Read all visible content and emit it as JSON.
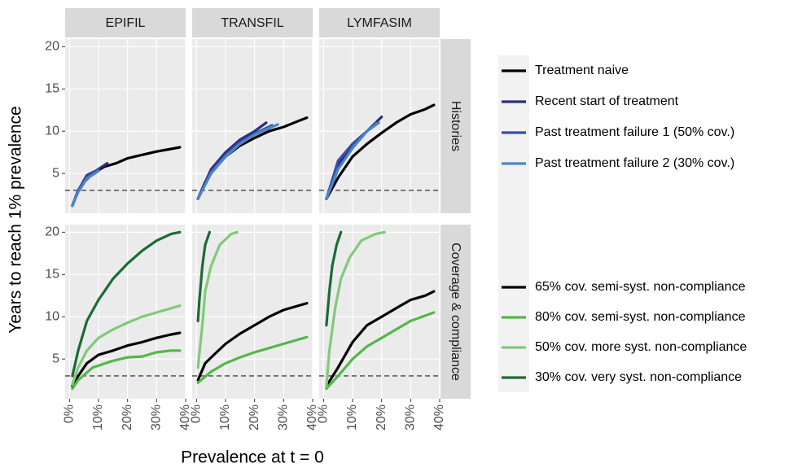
{
  "chart_data": {
    "type": "line",
    "x_label": "Prevalence at t = 0",
    "y_label": "Years to reach 1% prevalence",
    "columns": [
      "EPIFIL",
      "TRANSFIL",
      "LYMFASIM"
    ],
    "xlim": [
      -1.5,
      40
    ],
    "xticks": [
      {
        "value": 0,
        "label": "0%"
      },
      {
        "value": 10,
        "label": "10%"
      },
      {
        "value": 20,
        "label": "20%"
      },
      {
        "value": 30,
        "label": "30%"
      },
      {
        "value": 40,
        "label": "40%"
      }
    ],
    "ylim": [
      0.3,
      20.9
    ],
    "yticks": [
      5,
      10,
      15,
      20
    ],
    "reference_line": 3,
    "grid": true,
    "rows": [
      {
        "label": "Histories",
        "series": [
          {
            "name": "Treatment naive",
            "color": "#000000",
            "x": [
              [
                1,
                3,
                5,
                8,
                12,
                16,
                20,
                25,
                30,
                35,
                38
              ],
              [
                0.5,
                3,
                6,
                10,
                15,
                20,
                25,
                30,
                35,
                38
              ],
              [
                1,
                5,
                10,
                15,
                20,
                25,
                30,
                35,
                38
              ]
            ],
            "values": [
              [
                1.2,
                3,
                4,
                5,
                5.8,
                6.2,
                6.8,
                7.2,
                7.6,
                7.9,
                8.1
              ],
              [
                2,
                4,
                5.5,
                7,
                8.3,
                9.2,
                10,
                10.5,
                11.2,
                11.6
              ],
              [
                2,
                4.5,
                7,
                8.5,
                9.8,
                11,
                12,
                12.6,
                13.1
              ]
            ]
          },
          {
            "name": "Recent start of treatment",
            "color": "#2b2f7e",
            "x": [
              [
                1,
                3,
                6,
                9,
                13
              ],
              [
                0.5,
                5,
                10,
                15,
                20,
                24
              ],
              [
                1,
                5,
                10,
                15,
                20
              ]
            ],
            "values": [
              [
                1.2,
                3,
                4.8,
                5.3,
                6.2
              ],
              [
                2,
                5.5,
                7.5,
                9,
                10,
                11
              ],
              [
                2,
                6,
                8.5,
                10,
                11.7
              ]
            ]
          },
          {
            "name": "Past treatment failure 1 (50% cov.)",
            "color": "#3b4ba6",
            "x": [
              [
                1,
                3,
                6,
                10
              ],
              [
                0.5,
                5,
                10,
                15,
                20,
                26
              ],
              [
                1,
                5,
                10,
                15,
                18
              ]
            ],
            "values": [
              [
                1.2,
                3,
                4.6,
                5.5
              ],
              [
                2,
                5.2,
                7.2,
                8.7,
                9.7,
                10.7
              ],
              [
                2,
                6.5,
                8.5,
                10,
                11
              ]
            ]
          },
          {
            "name": "Past treatment failure 2 (30% cov.)",
            "color": "#4a86c5",
            "x": [
              [
                1,
                3,
                6,
                10
              ],
              [
                0.5,
                5,
                10,
                15,
                20,
                28
              ],
              [
                1,
                5,
                10,
                15,
                19
              ]
            ],
            "values": [
              [
                1.2,
                2.8,
                4.4,
                5.3
              ],
              [
                2,
                5,
                7,
                8.5,
                9.6,
                10.8
              ],
              [
                2,
                5.5,
                8,
                10,
                11
              ]
            ]
          }
        ]
      },
      {
        "label": "Coverage & compliance",
        "series": [
          {
            "name": "65% cov. semi-syst. non-compliance",
            "color": "#000000",
            "x": [
              [
                1,
                3,
                6,
                10,
                15,
                20,
                25,
                30,
                35,
                38
              ],
              [
                0.5,
                3,
                6,
                10,
                15,
                20,
                25,
                30,
                38
              ],
              [
                1,
                5,
                10,
                15,
                20,
                25,
                30,
                35,
                38
              ]
            ],
            "values": [
              [
                1.8,
                3,
                4.5,
                5.5,
                6,
                6.6,
                7,
                7.5,
                7.9,
                8.1
              ],
              [
                2.5,
                4.5,
                5.5,
                6.8,
                8,
                9,
                10,
                10.8,
                11.6
              ],
              [
                1.8,
                4,
                7,
                9,
                10,
                11,
                12,
                12.5,
                13
              ]
            ]
          },
          {
            "name": "80% cov. semi-syst. non-compliance",
            "color": "#53b848",
            "x": [
              [
                1,
                3,
                8,
                15,
                20,
                25,
                30,
                35,
                38
              ],
              [
                0.5,
                5,
                10,
                15,
                20,
                25,
                30,
                38
              ],
              [
                1,
                5,
                10,
                15,
                20,
                25,
                30,
                38
              ]
            ],
            "values": [
              [
                1.5,
                2.5,
                4,
                4.8,
                5.2,
                5.3,
                5.8,
                6,
                6
              ],
              [
                2.2,
                3.5,
                4.5,
                5.2,
                5.8,
                6.3,
                6.8,
                7.6
              ],
              [
                1.5,
                3,
                5,
                6.5,
                7.5,
                8.5,
                9.5,
                10.5
              ]
            ]
          },
          {
            "name": "50% cov. more syst. non-compliance",
            "color": "#82c97b",
            "x": [
              [
                1,
                3,
                6,
                10,
                15,
                20,
                25,
                30,
                38
              ],
              [
                0.5,
                2,
                3,
                5,
                8,
                12,
                14
              ],
              [
                1,
                2,
                4,
                6,
                9,
                13,
                18,
                21
              ]
            ],
            "values": [
              [
                2,
                4,
                6,
                7.5,
                8.5,
                9.3,
                10,
                10.5,
                11.3
              ],
              [
                4,
                9,
                13,
                16,
                18.5,
                19.8,
                20
              ],
              [
                1.8,
                6,
                11,
                14.5,
                17,
                19,
                19.8,
                20
              ]
            ]
          },
          {
            "name": "30% cov. very syst. non-compliance",
            "color": "#1b6b35",
            "x": [
              [
                1,
                3,
                6,
                10,
                15,
                20,
                25,
                30,
                35,
                38
              ],
              [
                0.5,
                1,
                2,
                3,
                4.5
              ],
              [
                1,
                2,
                3,
                4.5,
                6
              ]
            ],
            "values": [
              [
                3,
                6,
                9.5,
                12,
                14.5,
                16.3,
                17.8,
                19,
                19.8,
                20
              ],
              [
                9.5,
                12,
                16,
                18.5,
                20
              ],
              [
                9,
                13,
                16,
                18.5,
                20
              ]
            ]
          }
        ]
      }
    ]
  }
}
